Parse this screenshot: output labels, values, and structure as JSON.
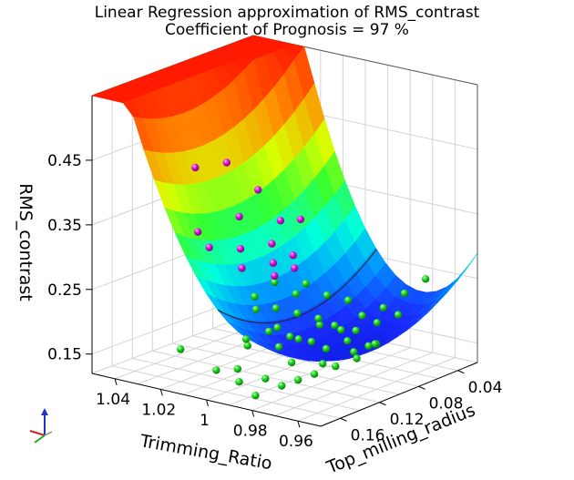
{
  "chart_data": {
    "type": "surface3d",
    "title": "Linear Regression approximation of RMS_contrast",
    "subtitle": "Coefficient of Prognosis = 97 %",
    "xlabel": "Trimming_Ratio",
    "ylabel": "Top_milling_radius",
    "zlabel": "RMS_contrast",
    "x_ticks": [
      "1.04",
      "1.02",
      "1",
      "0.98",
      "0.96"
    ],
    "y_ticks": [
      "0.16",
      "0.12",
      "0.08",
      "0.04"
    ],
    "z_ticks": [
      "0.45",
      "0.35",
      "0.25",
      "0.15"
    ],
    "xlim": [
      0.95,
      1.05
    ],
    "ylim": [
      0.02,
      0.18
    ],
    "zlim": [
      0.12,
      0.55
    ],
    "colormap": "jet",
    "grid": true,
    "points_green": [
      [
        0.99,
        0.17,
        0.15
      ],
      [
        0.985,
        0.165,
        0.13
      ],
      [
        0.995,
        0.15,
        0.19
      ],
      [
        0.99,
        0.14,
        0.21
      ],
      [
        0.985,
        0.13,
        0.2
      ],
      [
        0.98,
        0.12,
        0.19
      ],
      [
        0.99,
        0.11,
        0.18
      ],
      [
        0.985,
        0.1,
        0.2
      ],
      [
        0.98,
        0.09,
        0.19
      ],
      [
        0.975,
        0.08,
        0.21
      ],
      [
        0.97,
        0.07,
        0.22
      ],
      [
        0.965,
        0.06,
        0.24
      ],
      [
        0.96,
        0.05,
        0.26
      ],
      [
        0.97,
        0.1,
        0.17
      ],
      [
        0.975,
        0.12,
        0.16
      ],
      [
        0.98,
        0.14,
        0.17
      ],
      [
        0.99,
        0.13,
        0.18
      ],
      [
        0.995,
        0.12,
        0.2
      ],
      [
        1.0,
        0.11,
        0.22
      ],
      [
        0.995,
        0.1,
        0.21
      ],
      [
        0.99,
        0.09,
        0.2
      ],
      [
        0.985,
        0.085,
        0.19
      ],
      [
        0.98,
        0.075,
        0.18
      ],
      [
        0.975,
        0.065,
        0.19
      ],
      [
        0.97,
        0.055,
        0.2
      ],
      [
        1.0,
        0.13,
        0.23
      ],
      [
        1.005,
        0.12,
        0.24
      ],
      [
        1.0,
        0.14,
        0.19
      ],
      [
        0.995,
        0.16,
        0.16
      ],
      [
        0.985,
        0.155,
        0.15
      ],
      [
        0.98,
        0.15,
        0.14
      ],
      [
        0.975,
        0.145,
        0.15
      ],
      [
        0.97,
        0.14,
        0.16
      ],
      [
        0.965,
        0.13,
        0.17
      ],
      [
        0.96,
        0.12,
        0.18
      ],
      [
        0.96,
        0.1,
        0.19
      ],
      [
        0.965,
        0.09,
        0.18
      ],
      [
        0.97,
        0.085,
        0.17
      ],
      [
        0.975,
        0.095,
        0.18
      ],
      [
        0.98,
        0.105,
        0.17
      ],
      [
        1.0,
        0.09,
        0.23
      ],
      [
        1.005,
        0.1,
        0.25
      ],
      [
        1.0,
        0.08,
        0.24
      ],
      [
        0.995,
        0.07,
        0.22
      ],
      [
        0.99,
        0.06,
        0.21
      ],
      [
        1.02,
        0.16,
        0.17
      ],
      [
        1.0,
        0.17,
        0.16
      ]
    ],
    "points_magenta": [
      [
        1.04,
        0.1,
        0.4
      ],
      [
        1.035,
        0.08,
        0.4
      ],
      [
        1.03,
        0.06,
        0.35
      ],
      [
        1.025,
        0.09,
        0.33
      ],
      [
        1.025,
        0.12,
        0.3
      ],
      [
        1.02,
        0.1,
        0.29
      ],
      [
        1.015,
        0.08,
        0.29
      ],
      [
        1.03,
        0.12,
        0.32
      ],
      [
        1.02,
        0.06,
        0.31
      ],
      [
        1.015,
        0.11,
        0.27
      ],
      [
        1.01,
        0.09,
        0.27
      ],
      [
        1.01,
        0.07,
        0.27
      ],
      [
        1.005,
        0.08,
        0.26
      ],
      [
        1.005,
        0.1,
        0.26
      ],
      [
        1.02,
        0.04,
        0.3
      ]
    ]
  }
}
